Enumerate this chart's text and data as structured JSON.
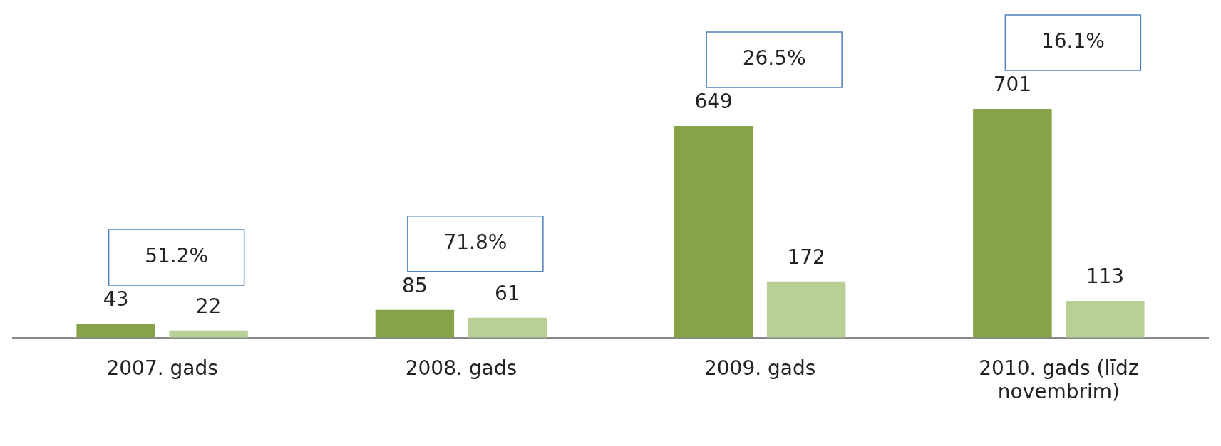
{
  "chart_data": {
    "type": "bar",
    "categories": [
      "2007. gads",
      "2008. gads",
      "2009. gads",
      "2010. gads (līdz novembrim)"
    ],
    "series": [
      {
        "color": "#86a34a",
        "values": [
          43,
          85,
          649,
          701
        ]
      },
      {
        "color": "#b8cf95",
        "values": [
          22,
          61,
          172,
          113
        ]
      }
    ],
    "data_labels": true,
    "tick_labels": "x",
    "grid": false,
    "legend": false,
    "annotations": [
      "51.2%",
      "71.8%",
      "26.5%",
      "16.1%"
    ]
  }
}
